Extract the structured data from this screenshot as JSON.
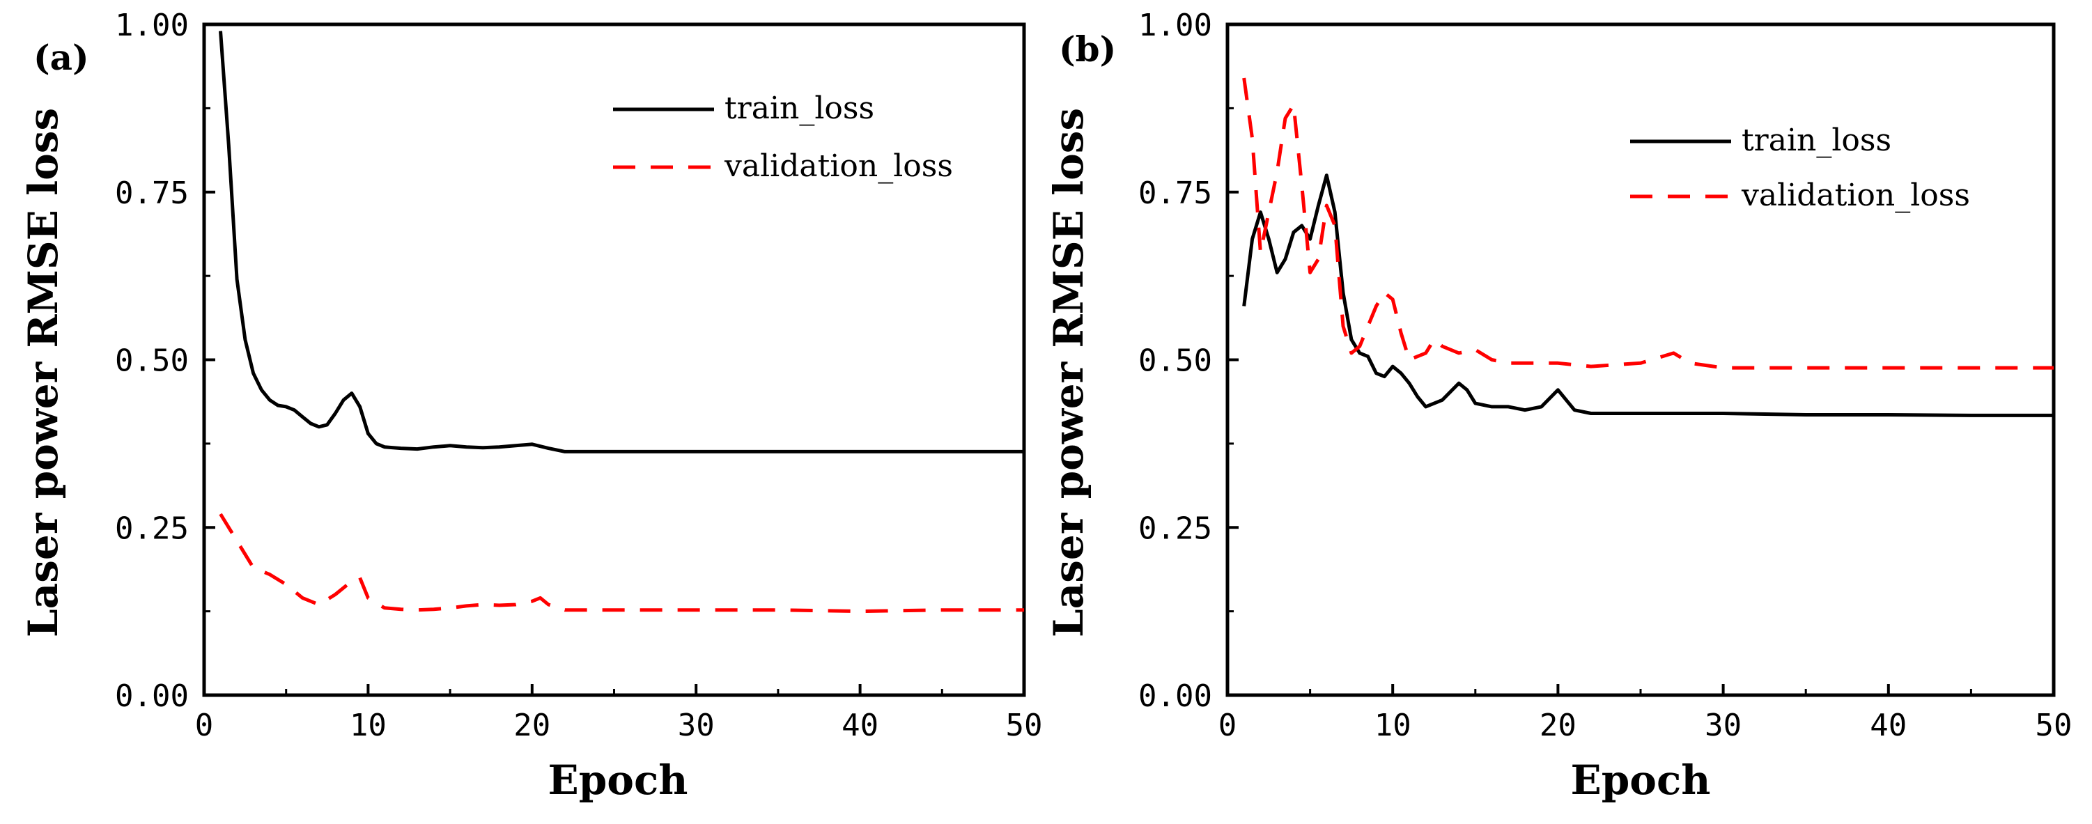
{
  "chart_data": [
    {
      "panel_label": "(a)",
      "type": "line",
      "xlabel": "Epoch",
      "ylabel": "Laser power RMSE loss",
      "xlim": [
        0,
        50
      ],
      "ylim": [
        0,
        1
      ],
      "xticks": [
        "0",
        "10",
        "20",
        "30",
        "40",
        "50"
      ],
      "yticks": [
        "0.00",
        "0.25",
        "0.50",
        "0.75",
        "1.00"
      ],
      "legend_position": "top-right",
      "grid": false,
      "series": [
        {
          "name": "train_loss",
          "color": "#000000",
          "style": "solid",
          "x": [
            1,
            1.5,
            2,
            2.5,
            3,
            3.5,
            4,
            4.5,
            5,
            5.5,
            6,
            6.5,
            7,
            7.5,
            8,
            8.5,
            9,
            9.5,
            10,
            10.5,
            11,
            12,
            13,
            14,
            15,
            16,
            17,
            18,
            19,
            20,
            21,
            22,
            25,
            30,
            35,
            40,
            45,
            50
          ],
          "y": [
            0.99,
            0.82,
            0.62,
            0.53,
            0.48,
            0.455,
            0.44,
            0.432,
            0.43,
            0.425,
            0.415,
            0.405,
            0.4,
            0.403,
            0.42,
            0.44,
            0.45,
            0.43,
            0.39,
            0.375,
            0.37,
            0.368,
            0.367,
            0.37,
            0.372,
            0.37,
            0.369,
            0.37,
            0.372,
            0.374,
            0.368,
            0.363,
            0.363,
            0.363,
            0.363,
            0.363,
            0.363,
            0.363
          ]
        },
        {
          "name": "validation_loss",
          "color": "#ff0000",
          "style": "dashed",
          "x": [
            1,
            2,
            3,
            4,
            5,
            6,
            7,
            8,
            9,
            9.5,
            10,
            11,
            12,
            13,
            14,
            15,
            16,
            17,
            18,
            19,
            20,
            20.5,
            21,
            22,
            25,
            30,
            35,
            40,
            45,
            50
          ],
          "y": [
            0.27,
            0.23,
            0.19,
            0.18,
            0.165,
            0.145,
            0.135,
            0.15,
            0.17,
            0.175,
            0.145,
            0.13,
            0.128,
            0.127,
            0.128,
            0.13,
            0.133,
            0.135,
            0.134,
            0.135,
            0.14,
            0.145,
            0.135,
            0.127,
            0.127,
            0.127,
            0.127,
            0.125,
            0.127,
            0.127
          ]
        }
      ]
    },
    {
      "panel_label": "(b)",
      "type": "line",
      "xlabel": "Epoch",
      "ylabel": "Laser power RMSE loss",
      "xlim": [
        0,
        50
      ],
      "ylim": [
        0,
        1
      ],
      "xticks": [
        "0",
        "10",
        "20",
        "30",
        "40",
        "50"
      ],
      "yticks": [
        "0.00",
        "0.25",
        "0.50",
        "0.75",
        "1.00"
      ],
      "legend_position": "top-right",
      "grid": false,
      "series": [
        {
          "name": "train_loss",
          "color": "#000000",
          "style": "solid",
          "x": [
            1,
            1.5,
            2,
            2.5,
            3,
            3.5,
            4,
            4.5,
            5,
            5.5,
            6,
            6.5,
            7,
            7.5,
            8,
            8.5,
            9,
            9.5,
            10,
            10.5,
            11,
            11.5,
            12,
            13,
            14,
            14.5,
            15,
            16,
            17,
            18,
            19,
            20,
            20.5,
            21,
            22,
            25,
            30,
            35,
            40,
            45,
            50
          ],
          "y": [
            0.58,
            0.68,
            0.72,
            0.68,
            0.63,
            0.65,
            0.69,
            0.7,
            0.68,
            0.73,
            0.775,
            0.72,
            0.6,
            0.53,
            0.51,
            0.505,
            0.48,
            0.475,
            0.49,
            0.48,
            0.465,
            0.445,
            0.43,
            0.44,
            0.465,
            0.455,
            0.435,
            0.43,
            0.43,
            0.425,
            0.43,
            0.455,
            0.44,
            0.425,
            0.42,
            0.42,
            0.42,
            0.418,
            0.418,
            0.417,
            0.417
          ]
        },
        {
          "name": "validation_loss",
          "color": "#ff0000",
          "style": "dashed",
          "x": [
            1,
            1.5,
            2,
            2.5,
            3,
            3.5,
            4,
            4.5,
            5,
            5.5,
            6,
            6.5,
            7,
            7.5,
            8,
            8.5,
            9,
            9.5,
            10,
            10.5,
            11,
            12,
            12.5,
            13,
            14,
            15,
            16,
            17,
            18,
            20,
            22,
            25,
            27,
            28,
            30,
            35,
            40,
            45,
            50
          ],
          "y": [
            0.92,
            0.83,
            0.66,
            0.72,
            0.78,
            0.86,
            0.88,
            0.76,
            0.63,
            0.65,
            0.73,
            0.7,
            0.55,
            0.51,
            0.52,
            0.55,
            0.58,
            0.6,
            0.59,
            0.54,
            0.5,
            0.51,
            0.53,
            0.52,
            0.51,
            0.515,
            0.5,
            0.495,
            0.495,
            0.495,
            0.49,
            0.495,
            0.51,
            0.495,
            0.488,
            0.488,
            0.488,
            0.488,
            0.488
          ]
        }
      ]
    }
  ]
}
